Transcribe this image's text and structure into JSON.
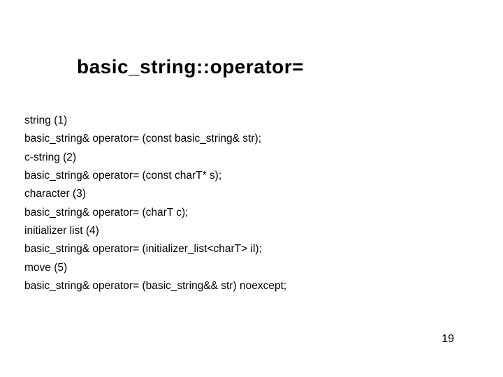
{
  "title": "basic_string::operator=",
  "lines": [
    "string (1)",
    "basic_string& operator= (const basic_string& str);",
    "c-string (2)",
    "basic_string& operator= (const charT* s);",
    "character (3)",
    "basic_string& operator= (charT c);",
    "initializer list (4)",
    "basic_string& operator= (initializer_list<charT> il);",
    "move (5)",
    "basic_string& operator= (basic_string&& str) noexcept;"
  ],
  "page_number": "19",
  "colors": {
    "background": "#ffffff",
    "text": "#000000"
  },
  "fontsize": {
    "title": 28,
    "body": 15.5,
    "page_number": 16
  }
}
